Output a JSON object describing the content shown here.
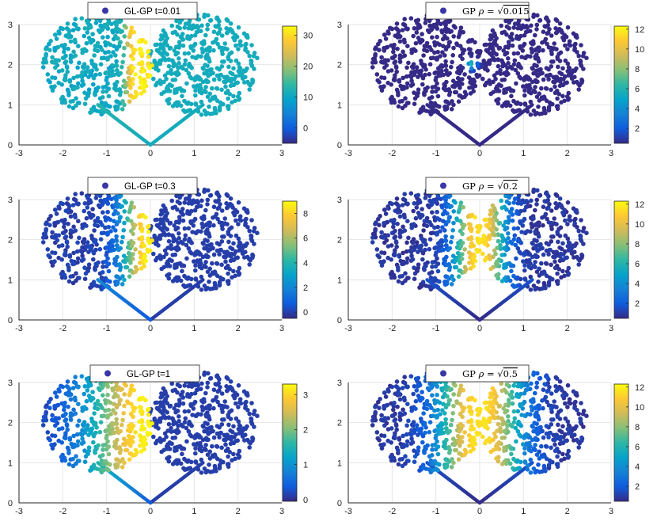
{
  "figure": {
    "layout": "3x2 grid of scatter plots with colorbars",
    "colormap": "parula",
    "colormap_stops": [
      "#352a87",
      "#0f5cdd",
      "#1481d6",
      "#06a4ca",
      "#2eb7a4",
      "#87bf77",
      "#d1bb59",
      "#fec832",
      "#f9fb0e"
    ],
    "marker_color": "#3a36a8"
  },
  "chart_data": [
    {
      "type": "scatter",
      "legend": "GL-GP t=0.01",
      "legend_style": "sans",
      "legend_placement": "top-center",
      "xlim": [
        -3,
        3
      ],
      "ylim": [
        0,
        3
      ],
      "xticks": [
        "-3",
        "-2",
        "-1",
        "0",
        "1",
        "2",
        "3"
      ],
      "yticks": [
        "0",
        "1",
        "2",
        "3"
      ],
      "grid": true,
      "colorbar": {
        "range": [
          -5,
          33
        ],
        "ticks": [
          "0",
          "10",
          "20",
          "30"
        ],
        "tick_values": [
          0,
          10,
          20,
          30
        ]
      },
      "color_pattern": {
        "mode": "hot_right_edge_left_circle",
        "min": -5,
        "max": 33
      }
    },
    {
      "type": "scatter",
      "legend": "GP ρ = √0.015",
      "legend_style": "math",
      "legend_prefix": "GP ",
      "legend_rho": "ρ = ",
      "legend_root": "0.015",
      "legend_placement": "top-center",
      "xlim": [
        -3,
        3
      ],
      "ylim": [
        0,
        3
      ],
      "xticks": [
        "-3",
        "-2",
        "-1",
        "0",
        "1",
        "2",
        "3"
      ],
      "yticks": [
        "0",
        "1",
        "2",
        "3"
      ],
      "grid": true,
      "colorbar": {
        "range": [
          0.5,
          12.3
        ],
        "ticks": [
          "2",
          "4",
          "6",
          "8",
          "10",
          "12"
        ],
        "tick_values": [
          2,
          4,
          6,
          8,
          10,
          12
        ]
      },
      "color_pattern": {
        "mode": "tiny_hotspot",
        "min": 0.5,
        "max": 12.3
      }
    },
    {
      "type": "scatter",
      "legend": "GL-GP t=0.3",
      "legend_style": "sans",
      "legend_placement": "top-center",
      "xlim": [
        -3,
        3
      ],
      "ylim": [
        0,
        3
      ],
      "xticks": [
        "-3",
        "-2",
        "-1",
        "0",
        "1",
        "2",
        "3"
      ],
      "yticks": [
        "0",
        "1",
        "2",
        "3"
      ],
      "grid": true,
      "colorbar": {
        "range": [
          -0.5,
          9
        ],
        "ticks": [
          "0",
          "2",
          "4",
          "6",
          "8"
        ],
        "tick_values": [
          0,
          2,
          4,
          6,
          8
        ]
      },
      "color_pattern": {
        "mode": "gradient_left_circle",
        "min": -0.5,
        "max": 9,
        "spread": 0.55
      }
    },
    {
      "type": "scatter",
      "legend": "GP ρ = √0.2",
      "legend_style": "math",
      "legend_prefix": "GP ",
      "legend_rho": "ρ = ",
      "legend_root": "0.2",
      "legend_placement": "top-center",
      "xlim": [
        -3,
        3
      ],
      "ylim": [
        0,
        3
      ],
      "xticks": [
        "-3",
        "-2",
        "-1",
        "0",
        "1",
        "2",
        "3"
      ],
      "yticks": [
        "0",
        "1",
        "2",
        "3"
      ],
      "grid": true,
      "colorbar": {
        "range": [
          0.5,
          12.3
        ],
        "ticks": [
          "2",
          "4",
          "6",
          "8",
          "10",
          "12"
        ],
        "tick_values": [
          2,
          4,
          6,
          8,
          10,
          12
        ]
      },
      "color_pattern": {
        "mode": "symmetric_inner",
        "min": 0.5,
        "max": 12.3,
        "spread": 0.5
      }
    },
    {
      "type": "scatter",
      "legend": "GL-GP t=1",
      "legend_style": "sans",
      "legend_placement": "top-center",
      "xlim": [
        -3,
        3
      ],
      "ylim": [
        0,
        3
      ],
      "xticks": [
        "-3",
        "-2",
        "-1",
        "0",
        "1",
        "2",
        "3"
      ],
      "yticks": [
        "0",
        "1",
        "2",
        "3"
      ],
      "grid": true,
      "colorbar": {
        "range": [
          -0.05,
          3.3
        ],
        "ticks": [
          "0",
          "1",
          "2",
          "3"
        ],
        "tick_values": [
          0,
          1,
          2,
          3
        ]
      },
      "color_pattern": {
        "mode": "gradient_left_circle_wide",
        "min": -0.05,
        "max": 3.3,
        "spread": 1.3
      }
    },
    {
      "type": "scatter",
      "legend": "GP ρ = √0.5",
      "legend_style": "math",
      "legend_prefix": "GP ",
      "legend_rho": "ρ = ",
      "legend_root": "0.5",
      "legend_placement": "top-center",
      "xlim": [
        -3,
        3
      ],
      "ylim": [
        0,
        3
      ],
      "xticks": [
        "-3",
        "-2",
        "-1",
        "0",
        "1",
        "2",
        "3"
      ],
      "yticks": [
        "0",
        "1",
        "2",
        "3"
      ],
      "grid": true,
      "colorbar": {
        "range": [
          0.5,
          12.3
        ],
        "ticks": [
          "2",
          "4",
          "6",
          "8",
          "10",
          "12"
        ],
        "tick_values": [
          2,
          4,
          6,
          8,
          10,
          12
        ]
      },
      "color_pattern": {
        "mode": "symmetric_inner",
        "min": 0.5,
        "max": 12.3,
        "spread": 0.85
      }
    }
  ]
}
